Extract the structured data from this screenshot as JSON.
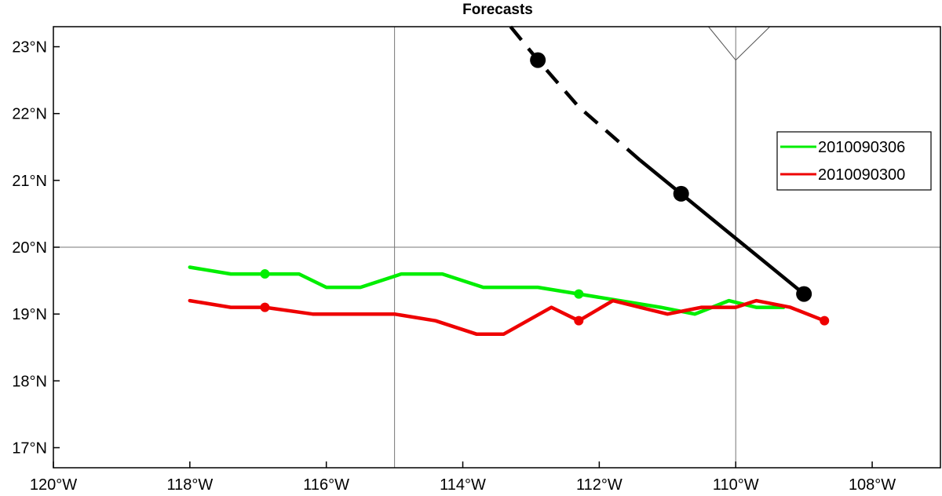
{
  "chart_data": {
    "type": "line",
    "title": "Forecasts",
    "xlabel": "",
    "ylabel": "",
    "xlim": [
      -120,
      -107.0
    ],
    "ylim": [
      16.7,
      23.3
    ],
    "x_ticks": [
      {
        "value": -120,
        "label": "120°W"
      },
      {
        "value": -118,
        "label": "118°W"
      },
      {
        "value": -116,
        "label": "116°W"
      },
      {
        "value": -114,
        "label": "114°W"
      },
      {
        "value": -112,
        "label": "112°W"
      },
      {
        "value": -110,
        "label": "110°W"
      },
      {
        "value": -108,
        "label": "108°W"
      }
    ],
    "y_ticks": [
      {
        "value": 17,
        "label": "17°N"
      },
      {
        "value": 18,
        "label": "18°N"
      },
      {
        "value": 19,
        "label": "19°N"
      },
      {
        "value": 20,
        "label": "20°N"
      },
      {
        "value": 21,
        "label": "21°N"
      },
      {
        "value": 22,
        "label": "22°N"
      },
      {
        "value": 23,
        "label": "23°N"
      }
    ],
    "gridlines": {
      "x": [
        -115,
        -110
      ],
      "y": [
        20
      ]
    },
    "legend": {
      "position": "right"
    },
    "observed_track": {
      "color": "#000000",
      "solid": [
        [
          -109.0,
          19.3
        ],
        [
          -109.6,
          19.8
        ],
        [
          -110.2,
          20.3
        ],
        [
          -110.8,
          20.8
        ],
        [
          -111.4,
          21.3
        ]
      ],
      "dashed": [
        [
          -111.4,
          21.3
        ],
        [
          -112.3,
          22.1
        ],
        [
          -112.9,
          22.8
        ],
        [
          -113.3,
          23.3
        ]
      ],
      "markers": [
        [
          -109.0,
          19.3
        ],
        [
          -110.8,
          20.8
        ],
        [
          -112.9,
          22.8
        ]
      ]
    },
    "series": [
      {
        "name": "2010090306",
        "color": "#00ee00",
        "points": [
          [
            -118.0,
            19.7
          ],
          [
            -117.4,
            19.6
          ],
          [
            -116.9,
            19.6
          ],
          [
            -116.4,
            19.6
          ],
          [
            -116.0,
            19.4
          ],
          [
            -115.5,
            19.4
          ],
          [
            -114.9,
            19.6
          ],
          [
            -114.3,
            19.6
          ],
          [
            -113.7,
            19.4
          ],
          [
            -112.9,
            19.4
          ],
          [
            -112.3,
            19.3
          ],
          [
            -111.7,
            19.2
          ],
          [
            -111.1,
            19.1
          ],
          [
            -110.6,
            19.0
          ],
          [
            -110.1,
            19.2
          ],
          [
            -109.7,
            19.1
          ],
          [
            -109.3,
            19.1
          ]
        ],
        "markers": [
          [
            -116.9,
            19.6
          ],
          [
            -112.3,
            19.3
          ]
        ]
      },
      {
        "name": "2010090300",
        "color": "#ee0000",
        "points": [
          [
            -118.0,
            19.2
          ],
          [
            -117.4,
            19.1
          ],
          [
            -116.9,
            19.1
          ],
          [
            -116.2,
            19.0
          ],
          [
            -115.0,
            19.0
          ],
          [
            -114.4,
            18.9
          ],
          [
            -113.8,
            18.7
          ],
          [
            -113.4,
            18.7
          ],
          [
            -112.7,
            19.1
          ],
          [
            -112.3,
            18.9
          ],
          [
            -111.8,
            19.2
          ],
          [
            -111.0,
            19.0
          ],
          [
            -110.5,
            19.1
          ],
          [
            -110.0,
            19.1
          ],
          [
            -109.7,
            19.2
          ],
          [
            -109.2,
            19.1
          ],
          [
            -108.7,
            18.9
          ]
        ],
        "markers": [
          [
            -116.9,
            19.1
          ],
          [
            -112.3,
            18.9
          ],
          [
            -108.7,
            18.9
          ]
        ]
      }
    ],
    "boundary_lines": [
      [
        [
          -110.0,
          20.0
        ],
        [
          -110.0,
          22.8
        ],
        [
          -109.5,
          23.3
        ]
      ],
      [
        [
          -110.0,
          22.8
        ],
        [
          -110.4,
          23.3
        ]
      ]
    ]
  }
}
